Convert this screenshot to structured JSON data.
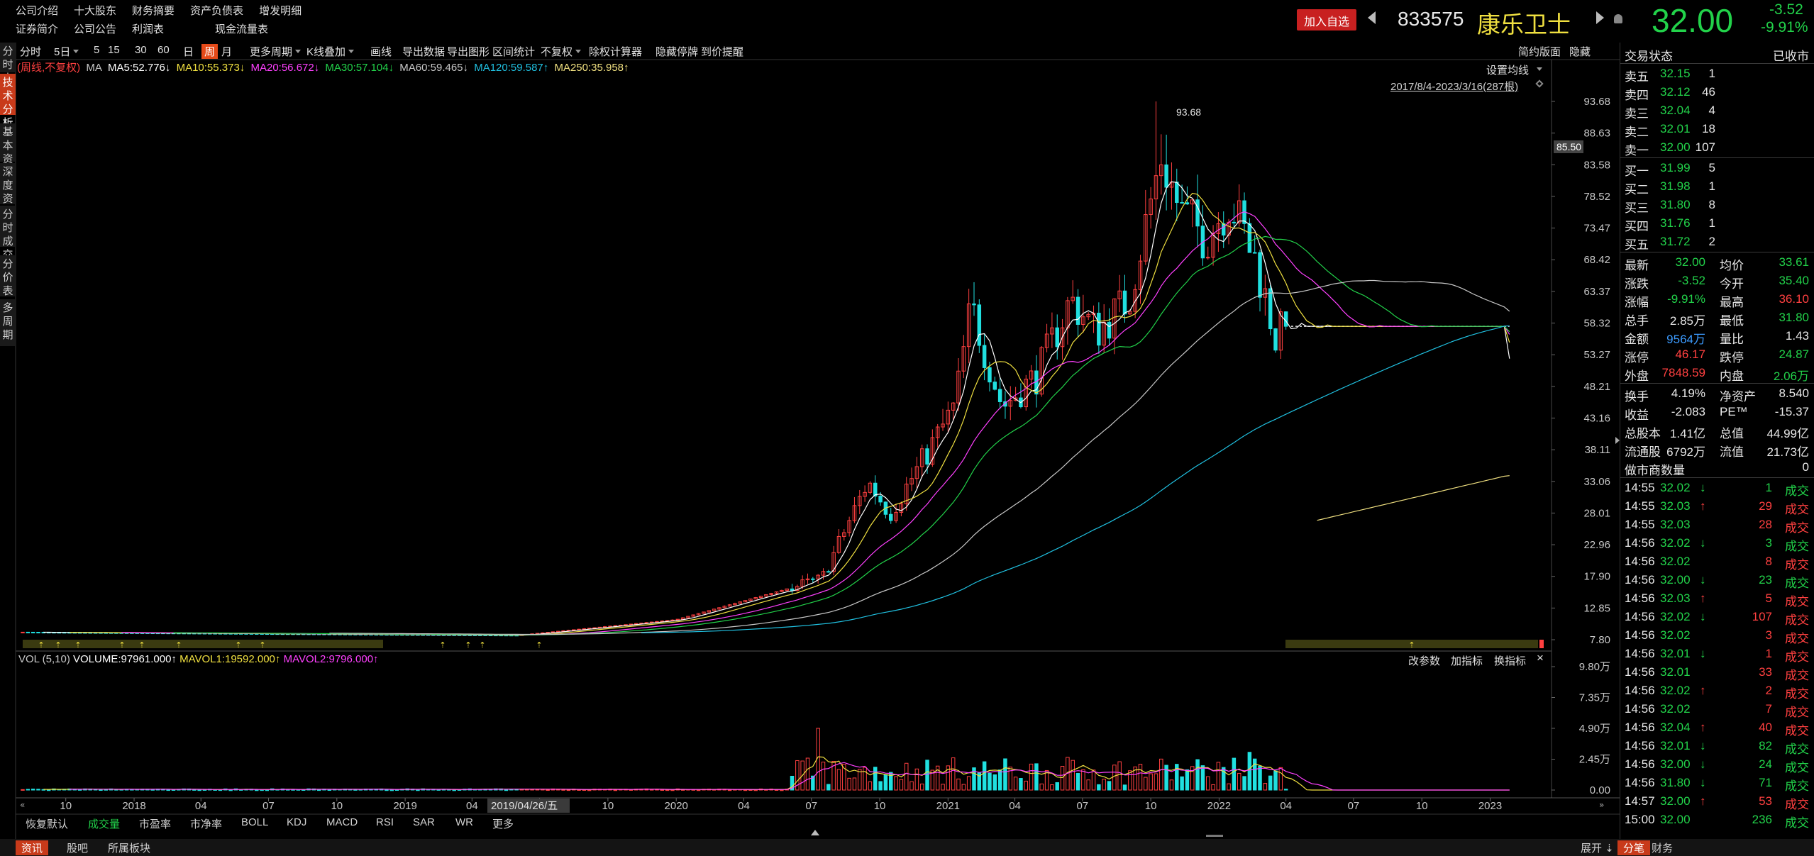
{
  "top_menu": {
    "row1": [
      "公司介绍",
      "十大股东",
      "财务摘要",
      "资产负债表",
      "增发明细"
    ],
    "row2": [
      "证券简介",
      "公司公告",
      "利润表",
      "现金流量表"
    ]
  },
  "header": {
    "add_fav": "加入自选",
    "code": "833575",
    "name": "康乐卫士",
    "price": "32.00",
    "change": "-3.52",
    "change_pct": "-9.91%"
  },
  "left_tabs": [
    "分时走势",
    "技术分析",
    "基本资料",
    "深度资料",
    "分时成交",
    "分价表",
    "多周期"
  ],
  "toolbar": {
    "items": [
      "分时",
      "5日",
      "5",
      "15",
      "30",
      "60",
      "日",
      "周",
      "月",
      "更多周期",
      "K线叠加",
      "画线",
      "导出数据",
      "导出图形",
      "区间统计",
      "不复权",
      "除权计算器",
      "隐藏停牌",
      "到价提醒"
    ],
    "right": [
      "简约版面",
      "隐藏"
    ]
  },
  "ma_legend": {
    "prefix": "(周线,不复权)",
    "ma": "MA",
    "ma5": "MA5:52.776↓",
    "ma10": "MA10:55.373↓",
    "ma20": "MA20:56.672↓",
    "ma30": "MA30:57.104↓",
    "ma60": "MA60:59.465↓",
    "ma120": "MA120:59.587↑",
    "ma250": "MA250:35.958↑"
  },
  "chart_controls": {
    "set_ma": "设置均线",
    "range": "2017/8/4-2023/3/16(287根)",
    "cursor_price": "85.50",
    "high_label": "93.68"
  },
  "vol_legend": {
    "name": "VOL (5,10)",
    "volume": "VOLUME:97961.000↑",
    "mavol1": "MAVOL1:19592.000↑",
    "mavol2": "MAVOL2:9796.000↑"
  },
  "vol_controls": [
    "改参数",
    "加指标",
    "换指标"
  ],
  "x_axis_tooltip": "2019/04/26/五",
  "chart_data": [
    {
      "type": "candlestick",
      "title": "",
      "period": "weekly",
      "ylim": [
        7.8,
        93.68
      ],
      "y_ticks": [
        "93.68",
        "88.63",
        "83.58",
        "78.52",
        "73.47",
        "68.42",
        "63.37",
        "58.32",
        "53.27",
        "48.21",
        "43.16",
        "38.11",
        "33.06",
        "28.01",
        "22.96",
        "17.90",
        "12.85",
        "7.80"
      ],
      "x_ticks": [
        "10",
        "2018",
        "04",
        "07",
        "10",
        "2019",
        "04",
        "07",
        "10",
        "2020",
        "04",
        "07",
        "10",
        "2021",
        "04",
        "07",
        "10",
        "2022",
        "04",
        "07",
        "10",
        "2023"
      ],
      "x_tick_dates": [
        "2017-10-01",
        "2018-01-01",
        "2018-04-01",
        "2018-07-01",
        "2018-10-01",
        "2019-01-01",
        "2019-04-01",
        "2019-07-01",
        "2019-10-01",
        "2020-01-01",
        "2020-04-01",
        "2020-07-01",
        "2020-10-01",
        "2021-01-01",
        "2021-04-01",
        "2021-07-01",
        "2021-10-01",
        "2022-01-01",
        "2022-04-01",
        "2022-07-01",
        "2022-10-01",
        "2023-01-01"
      ],
      "closes_anchor_dates": [
        "2017-08-04",
        "2019-06-01",
        "2020-01-01",
        "2020-06-01",
        "2020-07-15",
        "2020-09-15",
        "2020-10-15",
        "2020-12-01",
        "2021-01-10",
        "2021-02-01",
        "2021-03-15",
        "2021-05-01",
        "2021-06-15",
        "2021-07-20",
        "2021-09-01",
        "2021-10-15",
        "2021-11-10",
        "2021-12-15",
        "2022-01-15",
        "2022-02-20",
        "2022-03-18",
        "2022-04-01",
        "2023-03-09",
        "2023-03-16"
      ],
      "closes_anchor_values": [
        9.0,
        8.5,
        11.0,
        16.0,
        17.5,
        33.0,
        28.0,
        37.0,
        45.0,
        61.0,
        45.0,
        50.0,
        62.0,
        57.0,
        62.0,
        85.0,
        76.0,
        72.0,
        78.0,
        68.0,
        56.0,
        57.8,
        57.8,
        32.0
      ],
      "high": 93.68,
      "last_close": 32.0,
      "ma_values_latest": {
        "MA5": 52.776,
        "MA10": 55.373,
        "MA20": 56.672,
        "MA30": 57.104,
        "MA60": 59.465,
        "MA120": 59.587,
        "MA250": 35.958
      },
      "series_colors": {
        "MA5": "#ffffff",
        "MA10": "#f0e040",
        "MA20": "#ff40ff",
        "MA30": "#22d24a",
        "MA60": "#c8c8c8",
        "MA120": "#20c0e0",
        "MA250": "#f0e080"
      },
      "up_color": "#ff4040",
      "down_color": "#20e0e0"
    },
    {
      "type": "bar",
      "title": "VOL (5,10)",
      "ylim": [
        0,
        98000
      ],
      "y_ticks": [
        "9.80万",
        "7.35万",
        "4.90万",
        "2.45万",
        "0.00"
      ],
      "last_volume": 97961
    }
  ],
  "right_panel": {
    "status_label": "交易状态",
    "status_value": "已收市",
    "asks": [
      {
        "label": "卖五",
        "price": "32.15",
        "vol": "1"
      },
      {
        "label": "卖四",
        "price": "32.12",
        "vol": "46"
      },
      {
        "label": "卖三",
        "price": "32.04",
        "vol": "4"
      },
      {
        "label": "卖二",
        "price": "32.01",
        "vol": "18"
      },
      {
        "label": "卖一",
        "price": "32.00",
        "vol": "107"
      }
    ],
    "bids": [
      {
        "label": "买一",
        "price": "31.99",
        "vol": "5"
      },
      {
        "label": "买二",
        "price": "31.98",
        "vol": "1"
      },
      {
        "label": "买三",
        "price": "31.80",
        "vol": "8"
      },
      {
        "label": "买四",
        "price": "31.76",
        "vol": "1"
      },
      {
        "label": "买五",
        "price": "31.72",
        "vol": "2"
      }
    ],
    "stats": [
      {
        "l1": "最新",
        "v1": "32.00",
        "c1": "green",
        "l2": "均价",
        "v2": "33.61",
        "c2": "green"
      },
      {
        "l1": "涨跌",
        "v1": "-3.52",
        "c1": "green",
        "l2": "今开",
        "v2": "35.40",
        "c2": "green"
      },
      {
        "l1": "涨幅",
        "v1": "-9.91%",
        "c1": "green",
        "l2": "最高",
        "v2": "36.10",
        "c2": "red"
      },
      {
        "l1": "总手",
        "v1": "2.85万",
        "c1": "white",
        "l2": "最低",
        "v2": "31.80",
        "c2": "green"
      },
      {
        "l1": "金额",
        "v1": "9564万",
        "c1": "blue",
        "l2": "量比",
        "v2": "1.43",
        "c2": "white"
      },
      {
        "l1": "涨停",
        "v1": "46.17",
        "c1": "red",
        "l2": "跌停",
        "v2": "24.87",
        "c2": "green"
      },
      {
        "l1": "外盘",
        "v1": "7848.59",
        "c1": "red",
        "l2": "内盘",
        "v2": "2.06万",
        "c2": "green"
      }
    ],
    "fundamentals": [
      {
        "l1": "换手",
        "v1": "4.19%",
        "l2": "净资产",
        "v2": "8.540"
      },
      {
        "l1": "收益",
        "v1": "-2.083",
        "l2": "PE™",
        "v2": "-15.37"
      },
      {
        "l1": "总股本",
        "v1": "1.41亿",
        "l2": "总值",
        "v2": "44.99亿"
      },
      {
        "l1": "流通股",
        "v1": "6792万",
        "l2": "流值",
        "v2": "21.73亿"
      }
    ],
    "market_maker": {
      "label": "做市商数量",
      "value": "0"
    },
    "trades": [
      {
        "t": "14:55",
        "p": "32.02",
        "a": "↓",
        "v": "1",
        "c": "green"
      },
      {
        "t": "14:55",
        "p": "32.03",
        "a": "↑",
        "v": "29",
        "c": "red"
      },
      {
        "t": "14:55",
        "p": "32.03",
        "a": "",
        "v": "28",
        "c": "red"
      },
      {
        "t": "14:56",
        "p": "32.02",
        "a": "↓",
        "v": "3",
        "c": "green"
      },
      {
        "t": "14:56",
        "p": "32.02",
        "a": "",
        "v": "8",
        "c": "red"
      },
      {
        "t": "14:56",
        "p": "32.00",
        "a": "↓",
        "v": "23",
        "c": "green"
      },
      {
        "t": "14:56",
        "p": "32.03",
        "a": "↑",
        "v": "5",
        "c": "red"
      },
      {
        "t": "14:56",
        "p": "32.02",
        "a": "↓",
        "v": "107",
        "c": "red"
      },
      {
        "t": "14:56",
        "p": "32.02",
        "a": "",
        "v": "3",
        "c": "red"
      },
      {
        "t": "14:56",
        "p": "32.01",
        "a": "↓",
        "v": "1",
        "c": "red"
      },
      {
        "t": "14:56",
        "p": "32.01",
        "a": "",
        "v": "33",
        "c": "red"
      },
      {
        "t": "14:56",
        "p": "32.02",
        "a": "↑",
        "v": "2",
        "c": "red"
      },
      {
        "t": "14:56",
        "p": "32.02",
        "a": "",
        "v": "7",
        "c": "red"
      },
      {
        "t": "14:56",
        "p": "32.04",
        "a": "↑",
        "v": "40",
        "c": "red"
      },
      {
        "t": "14:56",
        "p": "32.01",
        "a": "↓",
        "v": "82",
        "c": "green"
      },
      {
        "t": "14:56",
        "p": "32.00",
        "a": "↓",
        "v": "24",
        "c": "green"
      },
      {
        "t": "14:56",
        "p": "31.80",
        "a": "↓",
        "v": "71",
        "c": "green"
      },
      {
        "t": "14:57",
        "p": "32.00",
        "a": "↑",
        "v": "53",
        "c": "red"
      },
      {
        "t": "15:00",
        "p": "32.00",
        "a": "",
        "v": "236",
        "c": "green"
      }
    ],
    "trade_label": "成交"
  },
  "indicator_tabs": [
    "恢复默认",
    "成交量",
    "市盈率",
    "市净率",
    "BOLL",
    "KDJ",
    "MACD",
    "RSI",
    "SAR",
    "WR",
    "更多"
  ],
  "bottom_bar": {
    "left": [
      "资讯",
      "股吧",
      "所属板块"
    ],
    "right": [
      "展开",
      "分笔",
      "财务"
    ]
  }
}
